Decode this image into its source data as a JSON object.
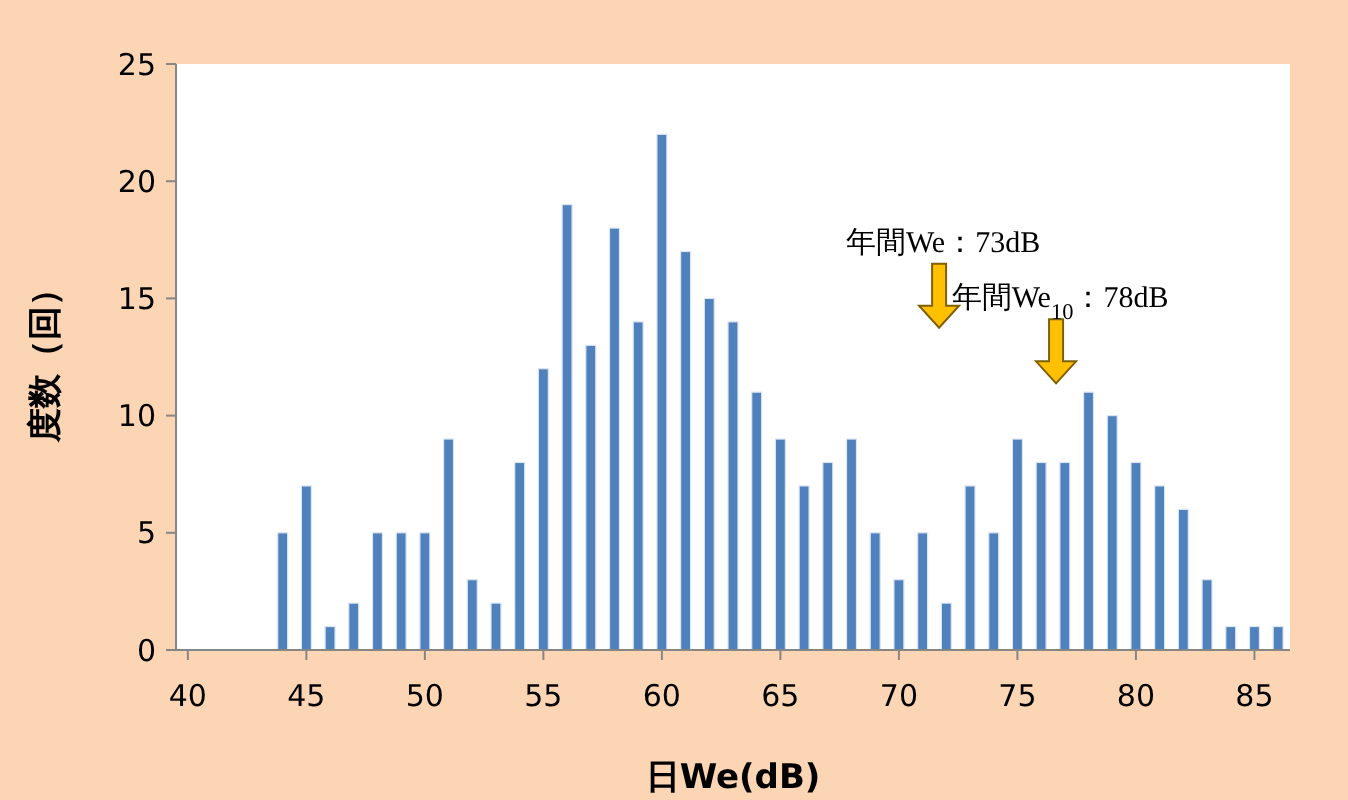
{
  "chart_data": {
    "type": "bar",
    "xlabel": "日We(dB)",
    "ylabel": "度数（回）",
    "x": [
      44,
      45,
      46,
      47,
      48,
      49,
      50,
      51,
      52,
      53,
      54,
      55,
      56,
      57,
      58,
      59,
      60,
      61,
      62,
      63,
      64,
      65,
      66,
      67,
      68,
      69,
      70,
      71,
      72,
      73,
      74,
      75,
      76,
      77,
      78,
      79,
      80,
      81,
      82,
      83,
      84,
      85,
      86
    ],
    "values": [
      5,
      7,
      1,
      2,
      5,
      5,
      5,
      9,
      3,
      2,
      8,
      12,
      19,
      13,
      18,
      14,
      22,
      17,
      15,
      14,
      11,
      9,
      7,
      8,
      9,
      5,
      3,
      5,
      2,
      7,
      5,
      9,
      8,
      8,
      11,
      10,
      8,
      7,
      6,
      3,
      1,
      1,
      1
    ],
    "color": "#4f81bd",
    "xlim": [
      39.5,
      86.5
    ],
    "xticks": [
      40,
      45,
      50,
      55,
      60,
      65,
      70,
      75,
      80,
      85
    ],
    "ylim": [
      0,
      25
    ],
    "yticks": [
      0,
      5,
      10,
      15,
      20,
      25
    ],
    "grid": false,
    "annotations": [
      "年間We：73dB",
      "年間We$_{10}$：78dB"
    ]
  }
}
